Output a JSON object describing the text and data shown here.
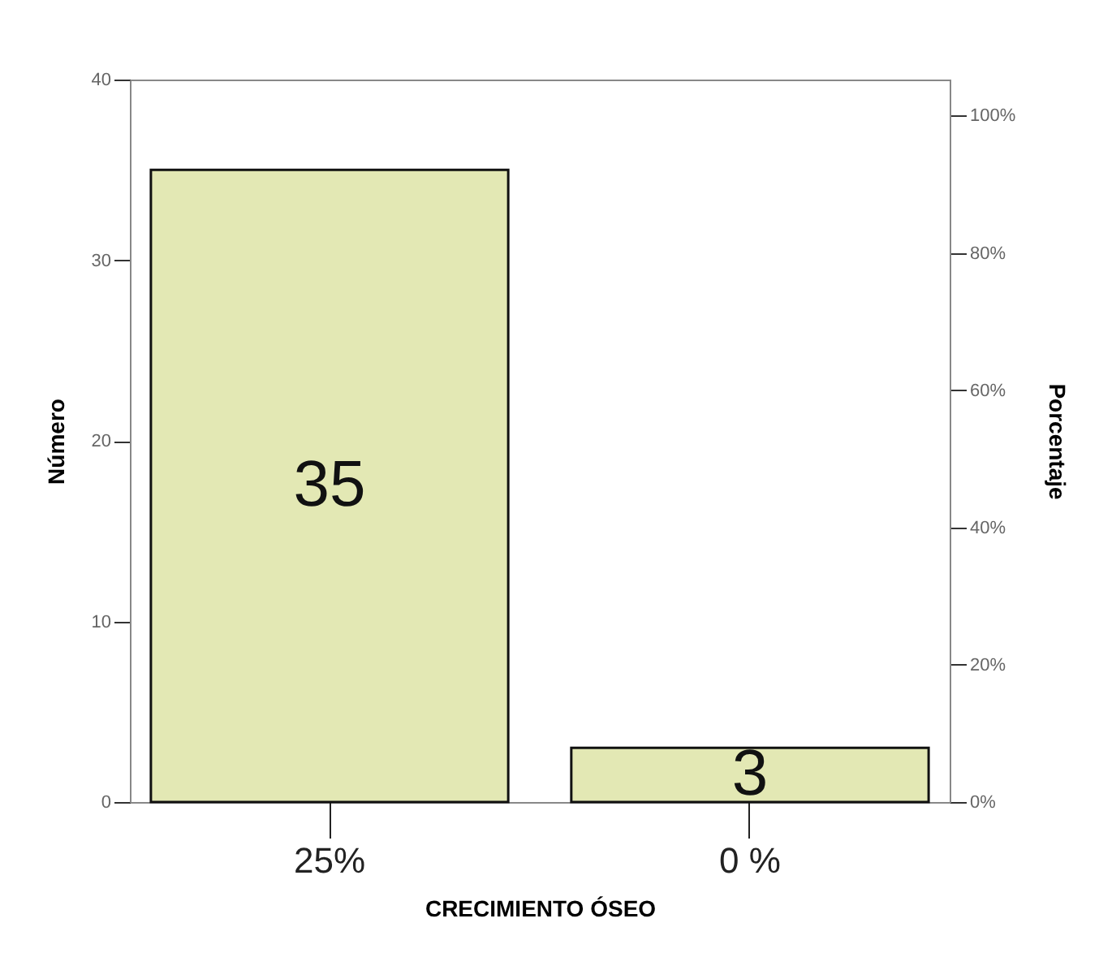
{
  "chart_data": {
    "type": "bar",
    "xlabel": "CRECIMIENTO ÓSEO",
    "ylabel": "Número",
    "y2label": "Porcentaje",
    "categories": [
      "25%",
      "0 %"
    ],
    "values": [
      35,
      3
    ],
    "color": "#e3e8b4",
    "ylim": [
      0,
      40
    ],
    "yticks": [
      0,
      10,
      20,
      30,
      40
    ],
    "y2lim": [
      0,
      105.26
    ],
    "y2ticks": [
      {
        "value": 0,
        "label": "0%"
      },
      {
        "value": 20,
        "label": "20%"
      },
      {
        "value": 40,
        "label": "40%"
      },
      {
        "value": 60,
        "label": "60%"
      },
      {
        "value": 80,
        "label": "80%"
      },
      {
        "value": 100,
        "label": "100%"
      }
    ],
    "data_labels": true,
    "grid": false
  }
}
